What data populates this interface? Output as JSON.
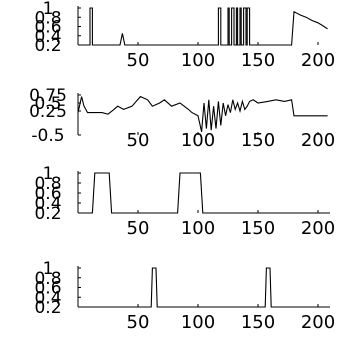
{
  "chart_data": [
    {
      "type": "line",
      "title": "",
      "xlabel": "",
      "ylabel": "",
      "xlim": [
        0,
        210
      ],
      "ylim": [
        0.2,
        1
      ],
      "x_ticks": [
        "50",
        "100",
        "150",
        "200"
      ],
      "y_ticks": [
        "0.2",
        "0.4",
        "0.6",
        "0.8",
        "1"
      ],
      "series": [
        {
          "x": [
            0,
            10,
            10,
            12,
            12,
            35,
            37,
            39,
            117,
            117,
            119,
            119,
            125,
            125,
            126,
            126,
            128,
            128,
            130,
            130,
            132,
            132,
            133,
            133,
            135,
            135,
            136,
            136,
            138,
            138,
            140,
            140,
            141,
            141,
            143,
            143,
            178,
            180,
            185,
            190,
            195,
            200,
            205,
            208
          ],
          "y": [
            0.2,
            0.2,
            1,
            1,
            0.2,
            0.2,
            0.45,
            0.2,
            0.2,
            1,
            1,
            0.2,
            0.2,
            1,
            1,
            0.2,
            0.2,
            1,
            1,
            0.2,
            0.2,
            1,
            1,
            0.2,
            0.2,
            1,
            1,
            0.2,
            0.2,
            1,
            1,
            0.2,
            0.2,
            1,
            1,
            0.2,
            0.2,
            0.92,
            0.85,
            0.8,
            0.73,
            0.68,
            0.6,
            0.55
          ]
        }
      ]
    },
    {
      "type": "line",
      "title": "",
      "xlabel": "",
      "ylabel": "",
      "xlim": [
        0,
        210
      ],
      "ylim": [
        -0.5,
        0.75
      ],
      "x_ticks": [
        "50",
        "100",
        "150",
        "200"
      ],
      "y_ticks": [
        "-0.5",
        "0.25",
        "0.5",
        "0.75"
      ],
      "series": [
        {
          "x": [
            0,
            3,
            5,
            8,
            20,
            25,
            30,
            33,
            38,
            45,
            52,
            58,
            62,
            68,
            72,
            78,
            85,
            92,
            95,
            100,
            103,
            105,
            107,
            109,
            111,
            113,
            115,
            117,
            119,
            121,
            123,
            125,
            127,
            129,
            131,
            133,
            135,
            137,
            139,
            141,
            143,
            146,
            150,
            158,
            165,
            172,
            178,
            180,
            190,
            208
          ],
          "y": [
            0.2,
            0.7,
            0.4,
            0.2,
            0.2,
            0.15,
            0.3,
            0.4,
            0.3,
            0.4,
            0.7,
            0.6,
            0.4,
            0.5,
            0.6,
            0.4,
            0.5,
            0.3,
            0.2,
            0.1,
            -0.4,
            0.5,
            -0.3,
            0.6,
            -0.35,
            0.4,
            -0.3,
            0.55,
            -0.2,
            0.5,
            0.1,
            0.45,
            0.2,
            0.6,
            0.3,
            0.5,
            0.25,
            0.55,
            0.3,
            0.4,
            0.55,
            0.6,
            0.5,
            0.55,
            0.6,
            0.55,
            0.6,
            0.1,
            0.1,
            0.1
          ]
        }
      ]
    },
    {
      "type": "line",
      "title": "",
      "xlabel": "",
      "ylabel": "",
      "xlim": [
        0,
        210
      ],
      "ylim": [
        0.2,
        1
      ],
      "x_ticks": [
        "50",
        "100",
        "150",
        "200"
      ],
      "y_ticks": [
        "0.2",
        "0.4",
        "0.6",
        "0.8",
        "1"
      ],
      "series": [
        {
          "x": [
            0,
            12,
            14,
            26,
            28,
            83,
            85,
            102,
            104,
            210
          ],
          "y": [
            0.2,
            0.2,
            1,
            1,
            0.2,
            0.2,
            1,
            1,
            0.2,
            0.2
          ]
        }
      ]
    },
    {
      "type": "line",
      "title": "",
      "xlabel": "",
      "ylabel": "",
      "xlim": [
        0,
        210
      ],
      "ylim": [
        0.2,
        1
      ],
      "x_ticks": [
        "50",
        "100",
        "150",
        "200"
      ],
      "y_ticks": [
        "0.2",
        "0.4",
        "0.6",
        "0.8",
        "1"
      ],
      "series": [
        {
          "x": [
            0,
            61,
            62,
            65,
            66,
            156,
            157,
            160,
            161,
            210
          ],
          "y": [
            0.2,
            0.2,
            1,
            1,
            0.2,
            0.2,
            1,
            1,
            0.2,
            0.2
          ]
        }
      ]
    }
  ]
}
